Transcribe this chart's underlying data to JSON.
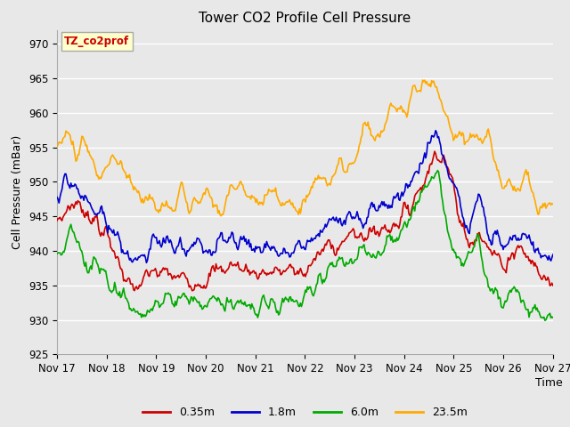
{
  "title": "Tower CO2 Profile Cell Pressure",
  "xlabel": "Time",
  "ylabel": "Cell Pressure (mBar)",
  "ylim": [
    925,
    972
  ],
  "yticks": [
    925,
    930,
    935,
    940,
    945,
    950,
    955,
    960,
    965,
    970
  ],
  "background_color": "#e0e0e0",
  "plot_bg_color": "#e8e8e8",
  "grid_color": "#ffffff",
  "legend_label": "TZ_co2prof",
  "legend_text_color": "#cc0000",
  "legend_box_color": "#ffffcc",
  "series": [
    {
      "label": "0.35m",
      "color": "#cc0000"
    },
    {
      "label": "1.8m",
      "color": "#0000cc"
    },
    {
      "label": "6.0m",
      "color": "#00aa00"
    },
    {
      "label": "23.5m",
      "color": "#ffaa00"
    }
  ],
  "xtick_labels": [
    "Nov 17",
    "Nov 18",
    "Nov 19",
    "Nov 20",
    "Nov 21",
    "Nov 22",
    "Nov 23",
    "Nov 24",
    "Nov 25",
    "Nov 26",
    "Nov 27"
  ],
  "n_points": 500,
  "time_days": 10
}
